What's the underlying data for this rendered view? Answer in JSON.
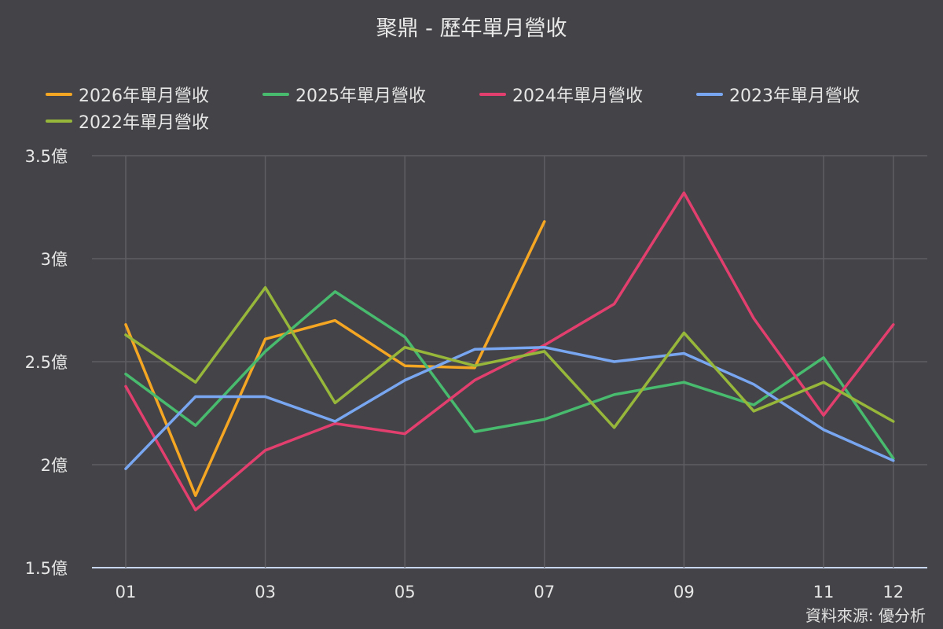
{
  "chart_data": {
    "type": "line",
    "title": "聚鼎 - 歷年單月營收",
    "source": "資料來源: 優分析",
    "categories": [
      "01",
      "02",
      "03",
      "04",
      "05",
      "06",
      "07",
      "08",
      "09",
      "10",
      "11",
      "12"
    ],
    "x_tick_labels": [
      "01",
      "03",
      "05",
      "07",
      "09",
      "11",
      "12"
    ],
    "y_ticks": [
      {
        "value": 1.5,
        "label": "1.5億"
      },
      {
        "value": 2,
        "label": "2億"
      },
      {
        "value": 2.5,
        "label": "2.5億"
      },
      {
        "value": 3,
        "label": "3億"
      },
      {
        "value": 3.5,
        "label": "3.5億"
      }
    ],
    "ylim": [
      1.5,
      3.5
    ],
    "unit": "億",
    "grid": true,
    "legend_position": "top",
    "series": [
      {
        "name": "2026年單月營收",
        "color": "#f5a623",
        "values": [
          2.68,
          1.85,
          2.61,
          2.7,
          2.48,
          2.47,
          3.18,
          null,
          null,
          null,
          null,
          null
        ]
      },
      {
        "name": "2025年單月營收",
        "color": "#48bb6e",
        "values": [
          2.44,
          2.19,
          2.55,
          2.84,
          2.62,
          2.16,
          2.22,
          2.34,
          2.4,
          2.29,
          2.52,
          2.03
        ]
      },
      {
        "name": "2024年單月營收",
        "color": "#e23e6e",
        "values": [
          2.38,
          1.78,
          2.07,
          2.2,
          2.15,
          2.41,
          2.58,
          2.78,
          3.32,
          2.71,
          2.24,
          2.68
        ]
      },
      {
        "name": "2023年單月營收",
        "color": "#79a6f0",
        "values": [
          1.98,
          2.33,
          2.33,
          2.21,
          2.41,
          2.56,
          2.57,
          2.5,
          2.54,
          2.39,
          2.17,
          2.02
        ]
      },
      {
        "name": "2022年單月營收",
        "color": "#97b73b",
        "values": [
          2.63,
          2.4,
          2.86,
          2.3,
          2.57,
          2.48,
          2.55,
          2.18,
          2.64,
          2.26,
          2.4,
          2.21
        ]
      }
    ]
  }
}
